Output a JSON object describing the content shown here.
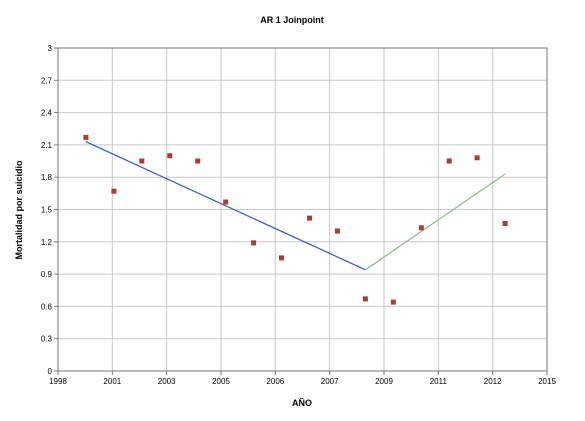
{
  "chart_data": {
    "type": "scatter",
    "title": "AR 1 Joinpoint",
    "xlabel": "AÑO",
    "ylabel": "Mortalidad por suicidio",
    "xlim": [
      1998,
      2015.5
    ],
    "ylim": [
      0,
      3
    ],
    "x_ticks": [
      "1998",
      "2001",
      "2003",
      "2005",
      "2006",
      "2007",
      "2009",
      "2011",
      "2012",
      "2015"
    ],
    "y_ticks": [
      "0",
      "0.3",
      "0.6",
      "0.9",
      "1.2",
      "1.5",
      "1.8",
      "2.1",
      "2.4",
      "2.7",
      "3"
    ],
    "grid": true,
    "series": [
      {
        "type": "scatter",
        "color": "#b03a2e",
        "points": [
          {
            "x": 1999,
            "y": 2.17
          },
          {
            "x": 2000,
            "y": 1.67
          },
          {
            "x": 2001,
            "y": 1.95
          },
          {
            "x": 2002,
            "y": 2.0
          },
          {
            "x": 2003,
            "y": 1.95
          },
          {
            "x": 2004,
            "y": 1.57
          },
          {
            "x": 2005,
            "y": 1.19
          },
          {
            "x": 2006,
            "y": 1.05
          },
          {
            "x": 2007,
            "y": 1.42
          },
          {
            "x": 2008,
            "y": 1.3
          },
          {
            "x": 2009,
            "y": 0.67
          },
          {
            "x": 2010,
            "y": 0.64
          },
          {
            "x": 2011,
            "y": 1.33
          },
          {
            "x": 2012,
            "y": 1.95
          },
          {
            "x": 2013,
            "y": 1.98
          },
          {
            "x": 2014,
            "y": 1.37
          }
        ]
      },
      {
        "type": "line",
        "color": "#3b5fcf",
        "points": [
          {
            "x": 1999,
            "y": 2.13
          },
          {
            "x": 2009,
            "y": 0.94
          }
        ]
      },
      {
        "type": "line",
        "color": "#8fbf8a",
        "points": [
          {
            "x": 2009,
            "y": 0.94
          },
          {
            "x": 2014,
            "y": 1.83
          }
        ]
      }
    ]
  }
}
